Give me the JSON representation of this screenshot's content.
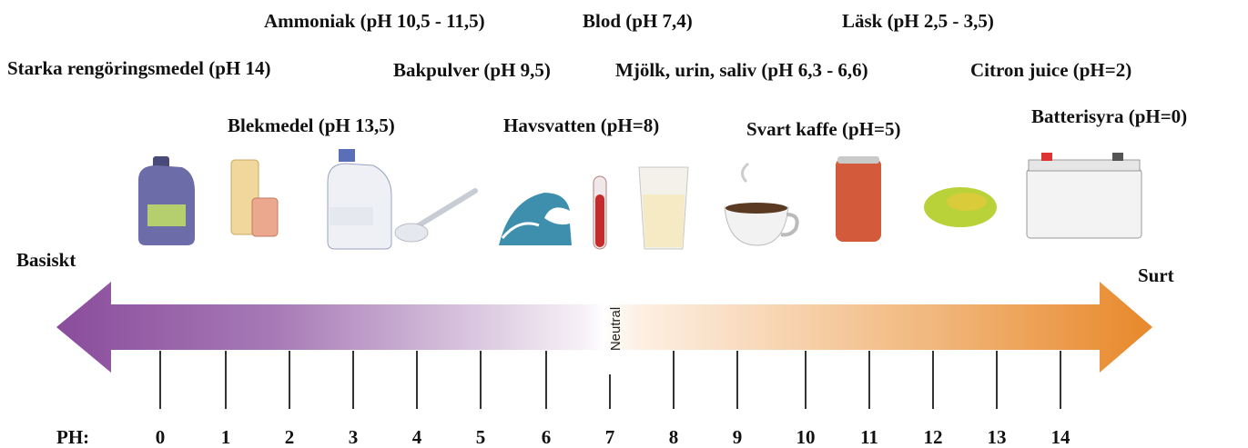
{
  "labels": [
    "Ammoniak (pH 10,5 - 11,5)",
    "Blod (pH 7,4)",
    "Läsk (pH 2,5 - 3,5)",
    "Starka rengöringsmedel (pH 14)",
    "Bakpulver (pH 9,5)",
    "Mjölk, urin, saliv (pH 6,3 - 6,6)",
    "Citron juice (pH=2)",
    "Blekmedel (pH 13,5)",
    "Havsvatten (pH=8)",
    "Svart kaffe (pH=5)",
    "Batterisyra (pH=0)"
  ],
  "scale": {
    "left_label": "Basiskt",
    "right_label": "Surt",
    "neutral": "Neutral",
    "axis_label": "PH:",
    "ticks": [
      0,
      1,
      2,
      3,
      4,
      5,
      6,
      7,
      8,
      9,
      10,
      11,
      12,
      13,
      14
    ]
  }
}
